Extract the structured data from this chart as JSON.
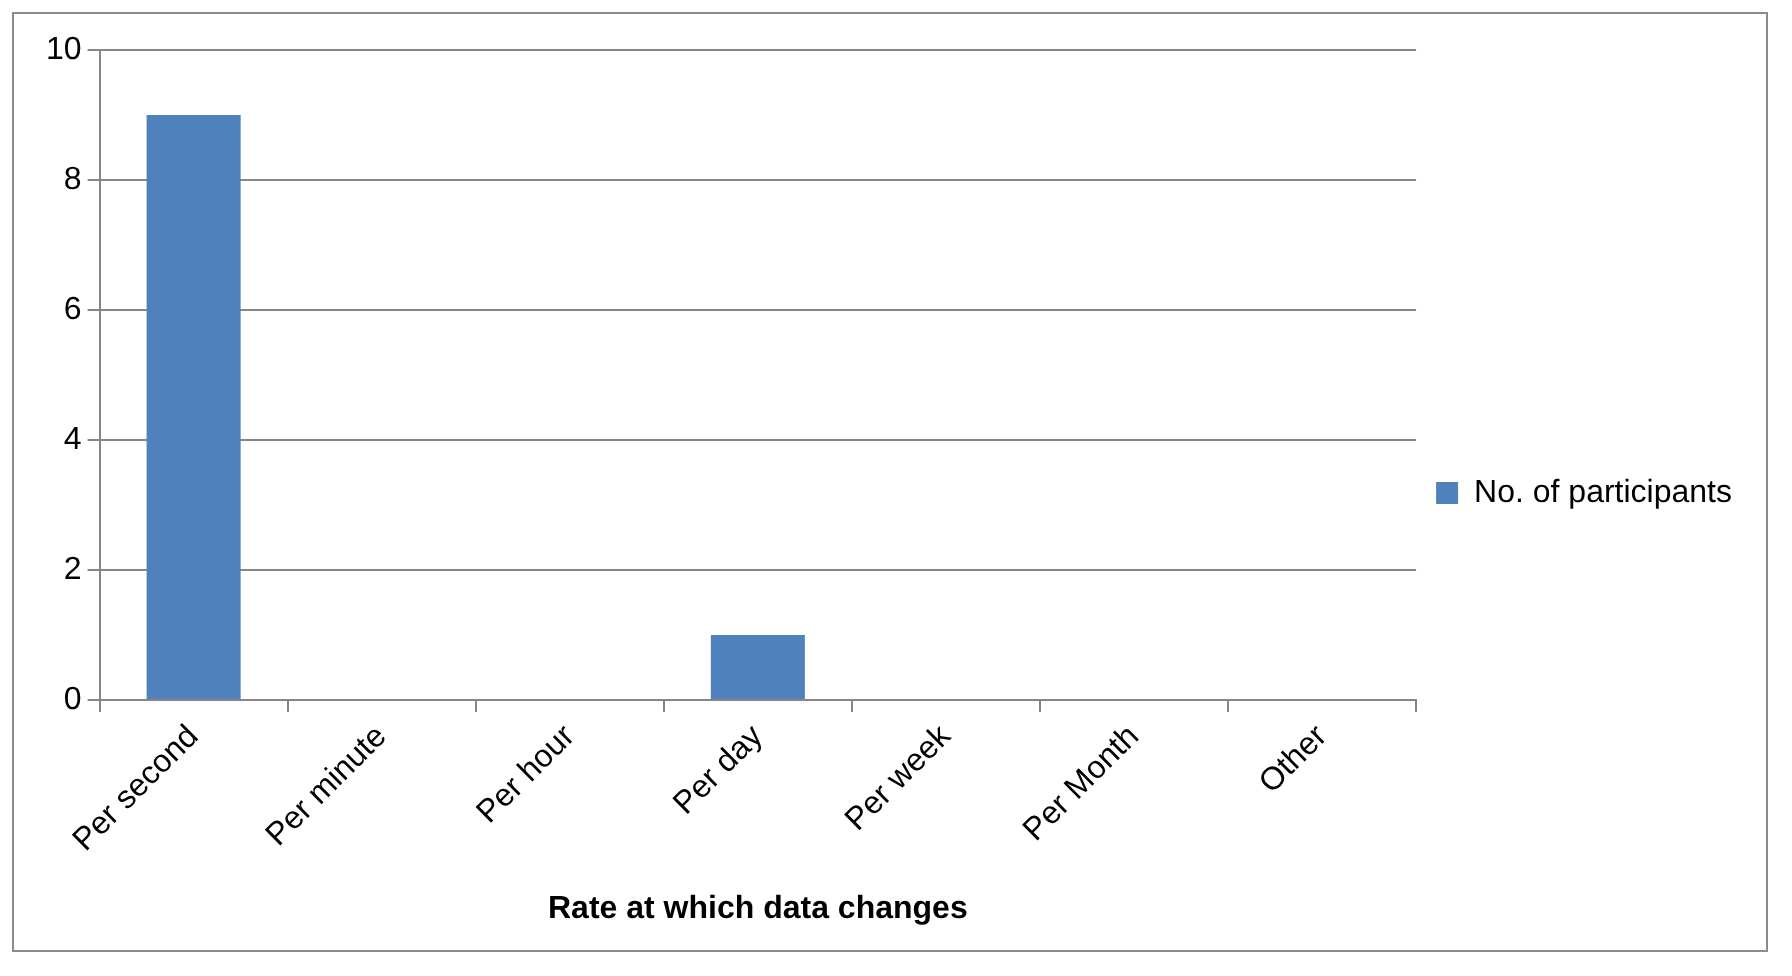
{
  "chart_data": {
    "type": "bar",
    "xlabel": "Rate at which data changes",
    "categories": [
      "Per second",
      "Per minute",
      "Per hour",
      "Per day",
      "Per week",
      "Per Month",
      "Other"
    ],
    "series": [
      {
        "name": "No. of participants",
        "color": "#4f81bd",
        "values": [
          9,
          0,
          0,
          1,
          0,
          0,
          0
        ]
      }
    ],
    "ylim": [
      0,
      10
    ],
    "yticks": [
      0,
      2,
      4,
      6,
      8,
      10
    ],
    "grid": "y",
    "legend": "right"
  }
}
